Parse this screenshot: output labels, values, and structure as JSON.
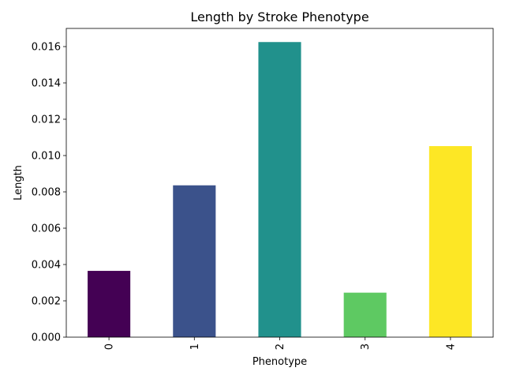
{
  "chart_data": {
    "type": "bar",
    "title": "Length by Stroke Phenotype",
    "xlabel": "Phenotype",
    "ylabel": "Length",
    "categories": [
      "0",
      "1",
      "2",
      "3",
      "4"
    ],
    "values": [
      0.00365,
      0.00836,
      0.01625,
      0.00245,
      0.01052
    ],
    "colors": [
      "#440154",
      "#3b528b",
      "#21918c",
      "#5ec962",
      "#fde725"
    ],
    "ylim": [
      0,
      0.017
    ],
    "yticks": [
      "0.000",
      "0.002",
      "0.004",
      "0.006",
      "0.008",
      "0.010",
      "0.012",
      "0.014",
      "0.016"
    ],
    "grid": false,
    "legend": "none"
  }
}
